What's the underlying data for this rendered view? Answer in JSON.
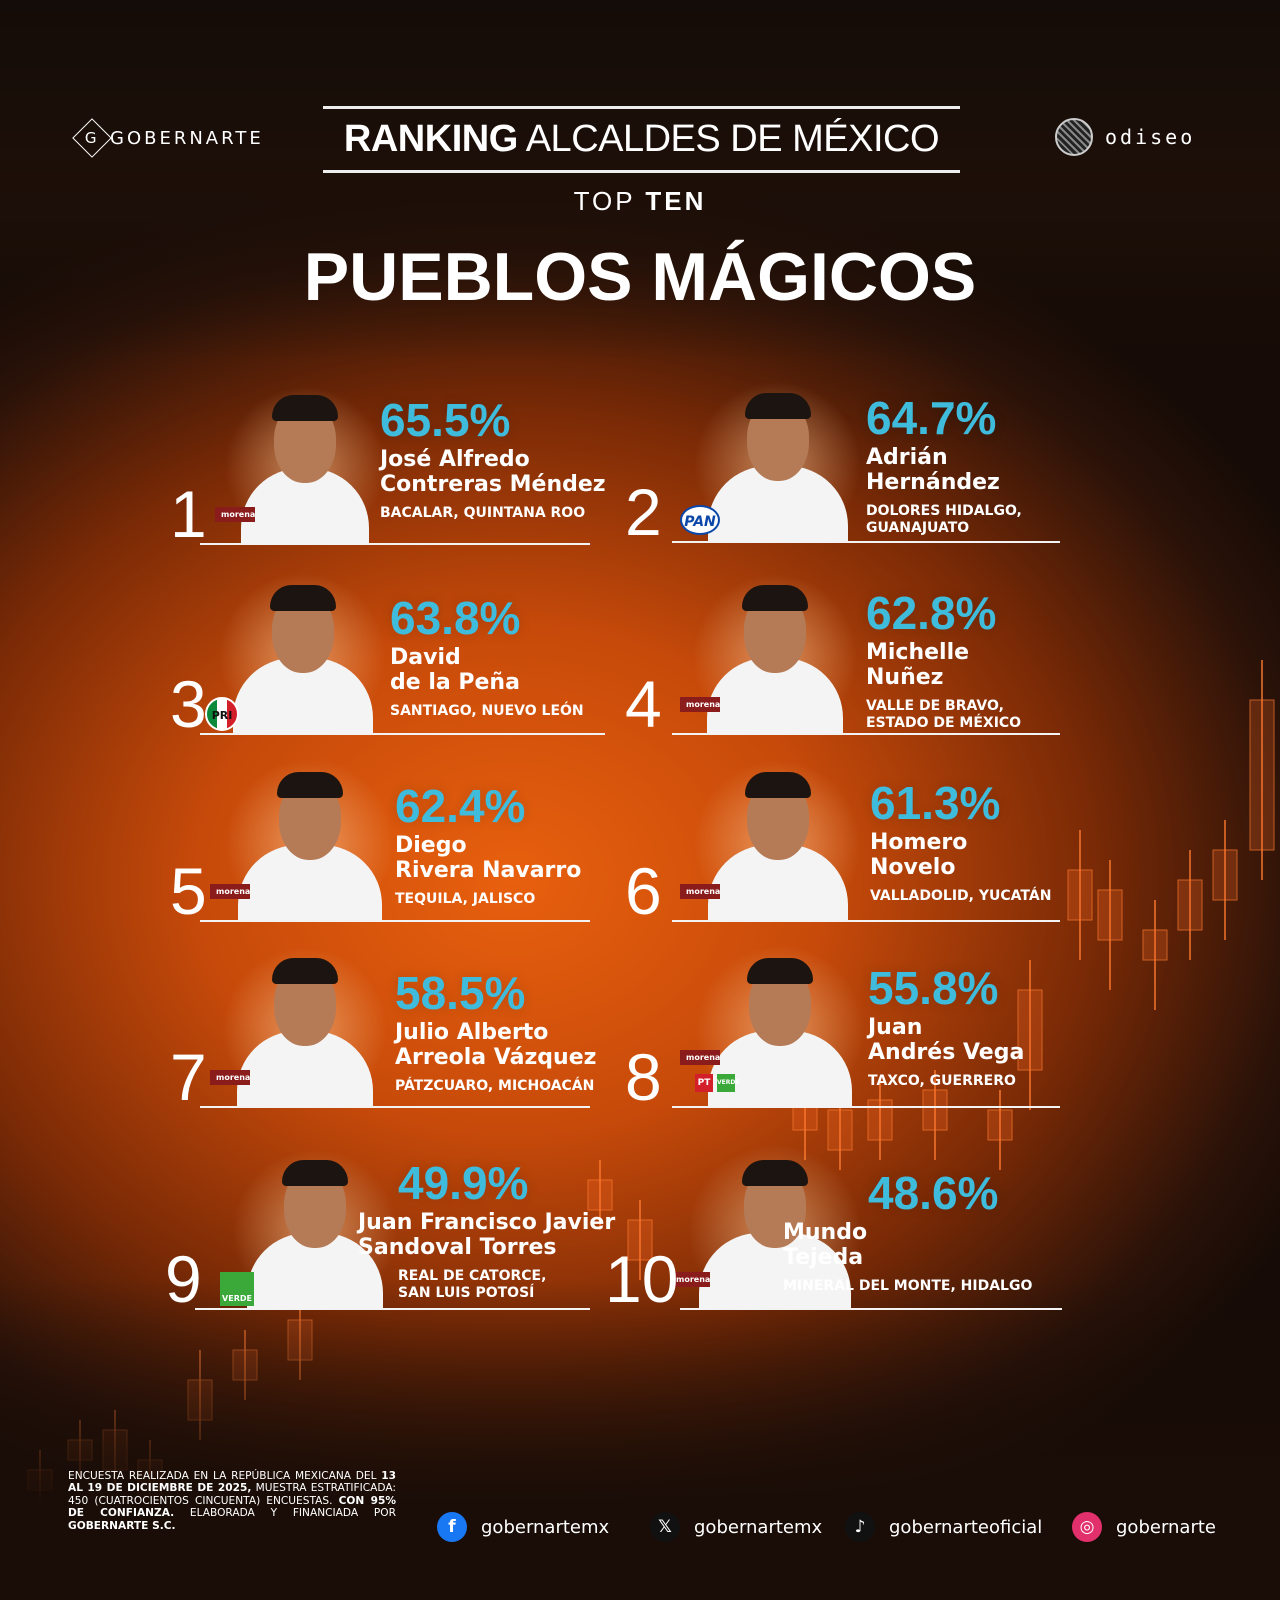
{
  "header": {
    "logo_left": "GOBERNARTE",
    "logo_right": "odiseo",
    "ranking_bold": "RANKING",
    "ranking_rest": " ALCALDES DE MÉXICO",
    "top": "TOP ",
    "ten": "TEN",
    "title": "PUEBLOS MÁGICOS"
  },
  "colors": {
    "accent": "#3fbbdc",
    "background": "#e8600e"
  },
  "ranking": [
    {
      "rank": "1",
      "percent": "65.5%",
      "name1": "José Alfredo",
      "name2": "Contreras Méndez",
      "loc1": "BACALAR, QUINTANA ROO",
      "loc2": "",
      "party": "morena"
    },
    {
      "rank": "2",
      "percent": "64.7%",
      "name1": "Adrián",
      "name2": "Hernández",
      "loc1": "DOLORES HIDALGO,",
      "loc2": "GUANAJUATO",
      "party": "PAN"
    },
    {
      "rank": "3",
      "percent": "63.8%",
      "name1": "David",
      "name2": "de la Peña",
      "loc1": "SANTIAGO, NUEVO LEÓN",
      "loc2": "",
      "party": "PRI"
    },
    {
      "rank": "4",
      "percent": "62.8%",
      "name1": "Michelle",
      "name2": "Nuñez",
      "loc1": "VALLE DE BRAVO,",
      "loc2": "ESTADO DE MÉXICO",
      "party": "morena"
    },
    {
      "rank": "5",
      "percent": "62.4%",
      "name1": "Diego",
      "name2": "Rivera Navarro",
      "loc1": "TEQUILA, JALISCO",
      "loc2": "",
      "party": "morena"
    },
    {
      "rank": "6",
      "percent": "61.3%",
      "name1": "Homero",
      "name2": "Novelo",
      "loc1": "VALLADOLID, YUCATÁN",
      "loc2": "",
      "party": "morena"
    },
    {
      "rank": "7",
      "percent": "58.5%",
      "name1": "Julio Alberto",
      "name2": "Arreola Vázquez",
      "loc1": "PÁTZCUARO, MICHOACÁN",
      "loc2": "",
      "party": "morena"
    },
    {
      "rank": "8",
      "percent": "55.8%",
      "name1": "Juan",
      "name2": "Andrés Vega",
      "loc1": "TAXCO, GUERRERO",
      "loc2": "",
      "party": "morena"
    },
    {
      "rank": "9",
      "percent": "49.9%",
      "name1": "Juan Francisco Javier",
      "name2": "Sandoval Torres",
      "loc1": "REAL DE CATORCE,",
      "loc2": "SAN LUIS POTOSÍ",
      "party": "VERDE"
    },
    {
      "rank": "10",
      "percent": "48.6%",
      "name1": "Mundo",
      "name2": "Tejeda",
      "loc1": "MINERAL DEL MONTE, HIDALGO",
      "loc2": "",
      "party": "morena"
    }
  ],
  "badges": {
    "morena": "morena",
    "pan": "PAN",
    "pri": "PRI",
    "verde": "VERDE",
    "pt": "PT"
  },
  "footer": {
    "d1": "ENCUESTA REALIZADA EN LA REPÚBLICA MEXICANA DEL ",
    "d2": "13 AL 19 DE DICIEMBRE DE 2025,",
    "d3": " MUESTRA ESTRATIFICADA: 450 (CUATROCIENTOS CINCUENTA) ENCUESTAS. ",
    "d4": "CON 95% DE CONFIANZA.",
    "d5": " ELABORADA Y FINANCIADA POR ",
    "d6": "GOBERNARTE S.C.",
    "socials": [
      {
        "icon": "facebook-icon",
        "glyph": "f",
        "handle": "gobernartemx"
      },
      {
        "icon": "x-icon",
        "glyph": "𝕏",
        "handle": "gobernartemx"
      },
      {
        "icon": "tiktok-icon",
        "glyph": "♪",
        "handle": "gobernarteoficial"
      },
      {
        "icon": "instagram-icon",
        "glyph": "◎",
        "handle": "gobernarte"
      }
    ]
  }
}
